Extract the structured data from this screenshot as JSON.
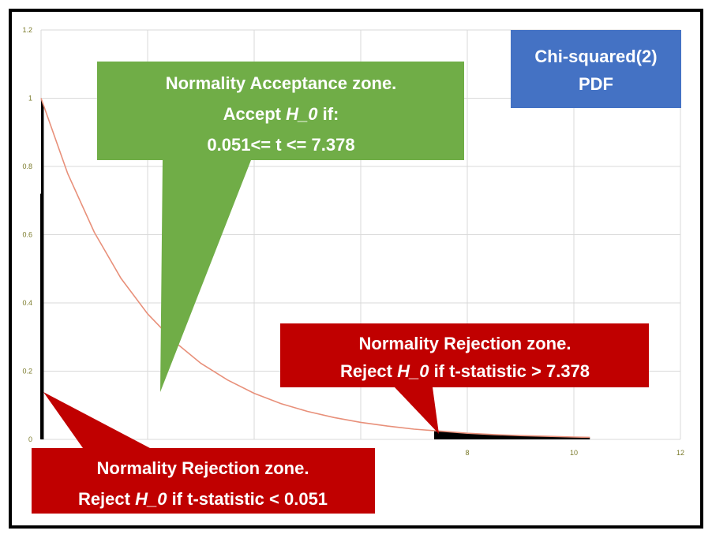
{
  "colors": {
    "curve": "#e8907a",
    "grid": "#d9d9d9",
    "green_callout": "#70ad47",
    "red_callout": "#c00000",
    "blue_box": "#4472c4",
    "shade": "#000000"
  },
  "chart_data": {
    "type": "line",
    "title": "",
    "xlabel": "",
    "ylabel": "",
    "xlim": [
      0,
      12
    ],
    "ylim": [
      0,
      1.2
    ],
    "grid": true,
    "x_ticks": [
      8,
      10,
      12
    ],
    "y_ticks": [
      0,
      0.2,
      0.4,
      0.6,
      0.8,
      1,
      1.2
    ],
    "x_tick_labels": [
      "8",
      "10",
      "12"
    ],
    "y_tick_labels": [
      "0",
      "0.2",
      "0.4",
      "0.6",
      "0.8",
      "1",
      "1.2"
    ],
    "series": [
      {
        "x": [
          0,
          0.5,
          1,
          1.5,
          2,
          2.5,
          3,
          3.5,
          4,
          4.5,
          5,
          5.5,
          6,
          6.5,
          7,
          7.5,
          8,
          8.5,
          9,
          9.5,
          10,
          10.3
        ],
        "y": [
          1.0,
          0.779,
          0.607,
          0.472,
          0.368,
          0.287,
          0.223,
          0.174,
          0.135,
          0.105,
          0.082,
          0.064,
          0.05,
          0.039,
          0.03,
          0.024,
          0.018,
          0.014,
          0.011,
          0.009,
          0.007,
          0.006
        ]
      }
    ],
    "shaded_regions": [
      {
        "from": 0,
        "to": 0.051,
        "label": "left-rejection"
      },
      {
        "from": 7.378,
        "to": 10.3,
        "label": "right-rejection"
      }
    ]
  },
  "annotations": {
    "distribution_label": [
      "Chi-squared(2)",
      "PDF"
    ],
    "acceptance": {
      "line1": "Normality Acceptance zone.",
      "line2_pre": "Accept ",
      "line2_italic": "H_0",
      "line2_post": " if:",
      "line3": "0.051<= t <= 7.378"
    },
    "rejection_right": {
      "line1": "Normality Rejection zone.",
      "line2_pre": "Reject ",
      "line2_italic": "H_0",
      "line2_post": " if t-statistic > 7.378"
    },
    "rejection_left": {
      "line1": "Normality Rejection zone.",
      "line2_pre": "Reject ",
      "line2_italic": "H_0",
      "line2_post": " if t-statistic < 0.051"
    }
  }
}
